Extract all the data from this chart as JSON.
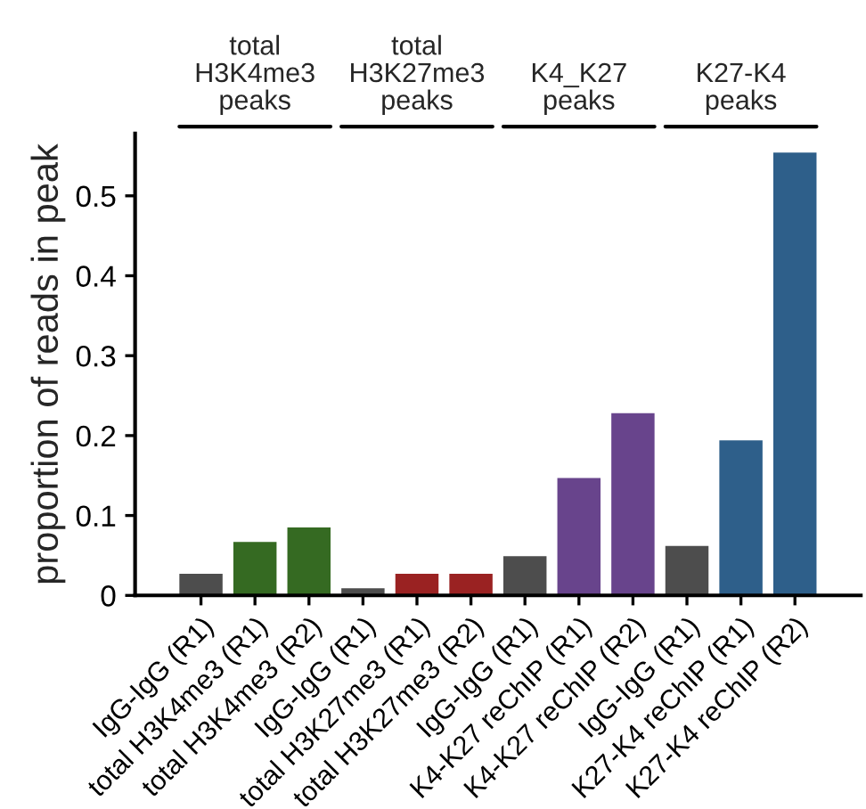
{
  "chart_data": {
    "type": "bar",
    "ylabel": "proportion of reads in peak",
    "categories": [
      "IgG-IgG (R1)",
      "total H3K4me3 (R1)",
      "total H3K4me3 (R2)",
      "IgG-IgG (R1)",
      "total H3K27me3 (R1)",
      "total H3K27me3 (R2)",
      "IgG-IgG (R1)",
      "K4-K27 reChIP (R1)",
      "K4-K27 reChIP (R2)",
      "IgG-IgG (R1)",
      "K27-K4 reChIP (R1)",
      "K27-K4 reChIP (R2)"
    ],
    "values": [
      0.027,
      0.067,
      0.085,
      0.009,
      0.027,
      0.027,
      0.049,
      0.147,
      0.228,
      0.062,
      0.194,
      0.554
    ],
    "colors": [
      "#4d4d4d",
      "#356a22",
      "#356a22",
      "#4d4d4d",
      "#9a2222",
      "#9a2222",
      "#4d4d4d",
      "#68448c",
      "#68448c",
      "#4d4d4d",
      "#2e5f8a",
      "#2e5f8a"
    ],
    "ylim": [
      0,
      0.578
    ],
    "yticks": [
      {
        "value": 0,
        "label": "0"
      },
      0.1,
      0.2,
      0.3,
      0.4,
      0.5
    ],
    "annotations": [
      {
        "text": "total\nH3K4me3\npeaks"
      },
      {
        "text": "total\nH3K27me3\npeaks"
      },
      {
        "text": "K4_K27\npeaks"
      },
      {
        "text": "K27-K4\npeaks"
      }
    ],
    "grid": false
  }
}
